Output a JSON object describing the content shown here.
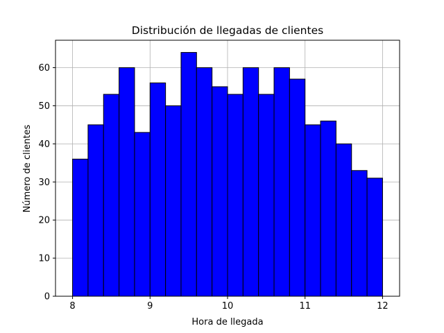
{
  "chart_data": {
    "type": "bar",
    "title": "Distribución de llegadas de clientes",
    "xlabel": "Hora de llegada",
    "ylabel": "Número de clientes",
    "bin_start": 8,
    "bin_width": 0.2,
    "values": [
      36,
      45,
      53,
      60,
      43,
      56,
      50,
      64,
      60,
      55,
      53,
      60,
      53,
      60,
      57,
      45,
      46,
      40,
      33,
      31
    ],
    "xlim": [
      7.78,
      12.22
    ],
    "ylim": [
      0,
      67.2
    ],
    "xticks": [
      8,
      9,
      10,
      11,
      12
    ],
    "yticks": [
      0,
      10,
      20,
      30,
      40,
      50,
      60
    ],
    "grid": true,
    "colors": {
      "bar_fill": "#0000ff",
      "bar_edge": "#000000",
      "grid": "#b0b0b0"
    }
  }
}
